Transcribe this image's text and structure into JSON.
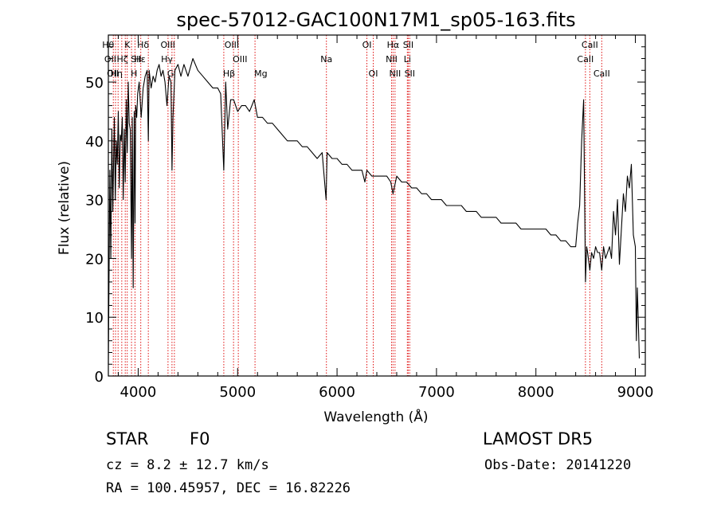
{
  "chart_data": {
    "type": "line",
    "title": "spec-57012-GAC100N17M1_sp05-163.fits",
    "xlabel": "Wavelength (Å)",
    "ylabel": "Flux (relative)",
    "xlim": [
      3700,
      9100
    ],
    "ylim": [
      0,
      58
    ],
    "xticks": [
      4000,
      5000,
      6000,
      7000,
      8000,
      9000
    ],
    "yticks": [
      0,
      10,
      20,
      30,
      40,
      50
    ],
    "x_minor_step": 200,
    "y_minor_step": 2,
    "series": [
      {
        "x": [
          3700,
          3715,
          3725,
          3735,
          3745,
          3760,
          3770,
          3780,
          3790,
          3800,
          3810,
          3820,
          3830,
          3840,
          3850,
          3860,
          3870,
          3880,
          3890,
          3900,
          3910,
          3920,
          3933,
          3940,
          3950,
          3960,
          3968,
          3975,
          3985,
          3995,
          4010,
          4030,
          4050,
          4070,
          4090,
          4102,
          4110,
          4130,
          4150,
          4170,
          4190,
          4210,
          4230,
          4250,
          4270,
          4290,
          4310,
          4330,
          4340,
          4350,
          4370,
          4400,
          4430,
          4460,
          4500,
          4550,
          4600,
          4650,
          4700,
          4750,
          4800,
          4830,
          4861,
          4880,
          4900,
          4930,
          4960,
          5000,
          5040,
          5080,
          5120,
          5167,
          5200,
          5250,
          5300,
          5350,
          5400,
          5450,
          5500,
          5550,
          5600,
          5650,
          5700,
          5750,
          5800,
          5850,
          5890,
          5900,
          5950,
          6000,
          6050,
          6100,
          6150,
          6200,
          6250,
          6280,
          6300,
          6350,
          6400,
          6450,
          6500,
          6540,
          6563,
          6600,
          6650,
          6700,
          6750,
          6800,
          6850,
          6900,
          6950,
          7000,
          7050,
          7100,
          7150,
          7200,
          7250,
          7300,
          7350,
          7400,
          7450,
          7500,
          7550,
          7600,
          7650,
          7700,
          7750,
          7800,
          7850,
          7900,
          7950,
          8000,
          8050,
          8100,
          8150,
          8200,
          8250,
          8300,
          8350,
          8400,
          8420,
          8440,
          8460,
          8480,
          8498,
          8510,
          8520,
          8542,
          8560,
          8580,
          8600,
          8620,
          8640,
          8662,
          8680,
          8700,
          8720,
          8740,
          8760,
          8780,
          8800,
          8820,
          8840,
          8860,
          8880,
          8900,
          8920,
          8940,
          8960,
          8980,
          9000,
          9010,
          9020,
          9030,
          9040
        ],
        "y": [
          2,
          35,
          20,
          42,
          28,
          44,
          30,
          40,
          36,
          45,
          32,
          41,
          40,
          44,
          30,
          42,
          33,
          47,
          38,
          50,
          43,
          42,
          20,
          44,
          15,
          45,
          26,
          46,
          44,
          48,
          50,
          44,
          49,
          51,
          52,
          40,
          52,
          49,
          51,
          50,
          52,
          53,
          51,
          52,
          50,
          46,
          51,
          50,
          35,
          44,
          52,
          53,
          51,
          53,
          51,
          54,
          52,
          51,
          50,
          49,
          49,
          48,
          35,
          50,
          42,
          47,
          47,
          45,
          46,
          46,
          45,
          47,
          44,
          44,
          43,
          43,
          42,
          41,
          40,
          40,
          40,
          39,
          39,
          38,
          37,
          38,
          30,
          38,
          37,
          37,
          36,
          36,
          35,
          35,
          35,
          33,
          35,
          34,
          34,
          34,
          34,
          33,
          31,
          34,
          33,
          33,
          32,
          32,
          31,
          31,
          30,
          30,
          30,
          29,
          29,
          29,
          29,
          28,
          28,
          28,
          27,
          27,
          27,
          27,
          26,
          26,
          26,
          26,
          25,
          25,
          25,
          25,
          25,
          25,
          24,
          24,
          23,
          23,
          22,
          22,
          26,
          29,
          40,
          47,
          16,
          22,
          21,
          18,
          21,
          20,
          22,
          21,
          21,
          18,
          22,
          20,
          21,
          22,
          20,
          28,
          24,
          30,
          19,
          25,
          31,
          28,
          34,
          32,
          36,
          24,
          22,
          6,
          15,
          9,
          3
        ]
      }
    ],
    "line_ids": [
      {
        "w": 3750,
        "label": "Hθ",
        "row": 0,
        "ha": "right"
      },
      {
        "w": 3772,
        "label": "OII",
        "row": 1,
        "ha": "right"
      },
      {
        "w": 3798,
        "label": "OII",
        "row": 2,
        "ha": "right"
      },
      {
        "w": 3835,
        "label": "Hη",
        "row": 2,
        "ha": "right"
      },
      {
        "w": 3870,
        "label": "K",
        "row": 0,
        "ha": "left"
      },
      {
        "w": 3890,
        "label": "Hζ",
        "row": 1,
        "ha": "right"
      },
      {
        "w": 3933,
        "label": "H",
        "row": 2,
        "ha": "left"
      },
      {
        "w": 3968,
        "label": "Hε",
        "row": 1,
        "ha": "left"
      },
      {
        "w": 4026,
        "label": "SII",
        "row": 1,
        "ha": "right"
      },
      {
        "w": 4102,
        "label": "Hδ",
        "row": 0,
        "ha": "right"
      },
      {
        "w": 4300,
        "label": "G",
        "row": 2,
        "ha": "left"
      },
      {
        "w": 4340,
        "label": "Hγ",
        "row": 1,
        "ha": "right"
      },
      {
        "w": 4364,
        "label": "OIII",
        "row": 0,
        "ha": "right"
      },
      {
        "w": 4861,
        "label": "Hβ",
        "row": 2,
        "ha": "left"
      },
      {
        "w": 4959,
        "label": "OIII",
        "row": 1,
        "ha": "left"
      },
      {
        "w": 5007,
        "label": "OIII",
        "row": 0,
        "ha": "right"
      },
      {
        "w": 5175,
        "label": "Mg",
        "row": 2,
        "ha": "left"
      },
      {
        "w": 5893,
        "label": "Na",
        "row": 1,
        "ha": "center"
      },
      {
        "w": 6300,
        "label": "OI",
        "row": 0,
        "ha": "center"
      },
      {
        "w": 6364,
        "label": "OI",
        "row": 2,
        "ha": "center"
      },
      {
        "w": 6548,
        "label": "NII",
        "row": 1,
        "ha": "center"
      },
      {
        "w": 6563,
        "label": "Hα",
        "row": 0,
        "ha": "center"
      },
      {
        "w": 6583,
        "label": "NII",
        "row": 2,
        "ha": "center"
      },
      {
        "w": 6707,
        "label": "Li",
        "row": 1,
        "ha": "center"
      },
      {
        "w": 6716,
        "label": "SII",
        "row": 0,
        "ha": "center"
      },
      {
        "w": 6731,
        "label": "SII",
        "row": 2,
        "ha": "center"
      },
      {
        "w": 8498,
        "label": "CaII",
        "row": 1,
        "ha": "center"
      },
      {
        "w": 8542,
        "label": "CaII",
        "row": 0,
        "ha": "center"
      },
      {
        "w": 8662,
        "label": "CaII",
        "row": 2,
        "ha": "center"
      }
    ]
  },
  "info": {
    "object_class": "STAR",
    "subclass": "F0",
    "survey": "LAMOST DR5",
    "cz": "cz = 8.2 ± 12.7 km/s",
    "obs_date": "Obs-Date: 20141220",
    "coords": "RA = 100.45957, DEC =  16.82226"
  },
  "colors": {
    "spectrum": "#000000",
    "line_marker": "#e01010",
    "background": "#ffffff"
  }
}
